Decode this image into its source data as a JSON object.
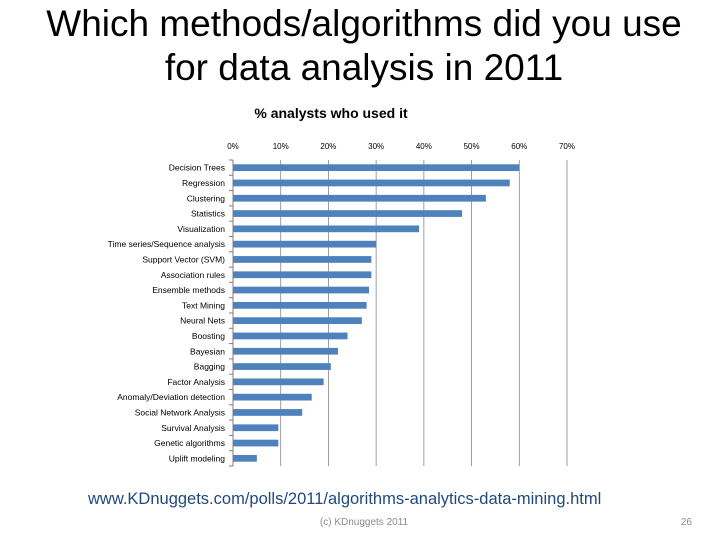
{
  "slide": {
    "title": "Which methods/algorithms did you use for data analysis in 2011",
    "source_url": "www.KDnuggets.com/polls/2011/algorithms-analytics-data-mining.html",
    "footer": "(c) KDnuggets 2011",
    "page_number": "26"
  },
  "chart_data": {
    "type": "bar",
    "orientation": "horizontal",
    "title": "% analysts who used it",
    "xlabel": "",
    "ylabel": "",
    "xlim": [
      0,
      70
    ],
    "x_ticks": [
      0,
      10,
      20,
      30,
      40,
      50,
      60,
      70
    ],
    "x_tick_labels": [
      "0%",
      "10%",
      "20%",
      "30%",
      "40%",
      "50%",
      "60%",
      "70%"
    ],
    "x_axis_position": "top",
    "grid": true,
    "bar_color": "#4f81bd",
    "categories": [
      "Decision Trees",
      "Regression",
      "Clustering",
      "Statistics",
      "Visualization",
      "Time series/Sequence analysis",
      "Support Vector (SVM)",
      "Association rules",
      "Ensemble methods",
      "Text Mining",
      "Neural Nets",
      "Boosting",
      "Bayesian",
      "Bagging",
      "Factor Analysis",
      "Anomaly/Deviation detection",
      "Social Network Analysis",
      "Survival Analysis",
      "Genetic algorithms",
      "Uplift modeling"
    ],
    "values": [
      60,
      58,
      53,
      48,
      39,
      30,
      29,
      29,
      28.5,
      28,
      27,
      24,
      22,
      20.5,
      19,
      16.5,
      14.5,
      9.5,
      9.5,
      5
    ]
  }
}
